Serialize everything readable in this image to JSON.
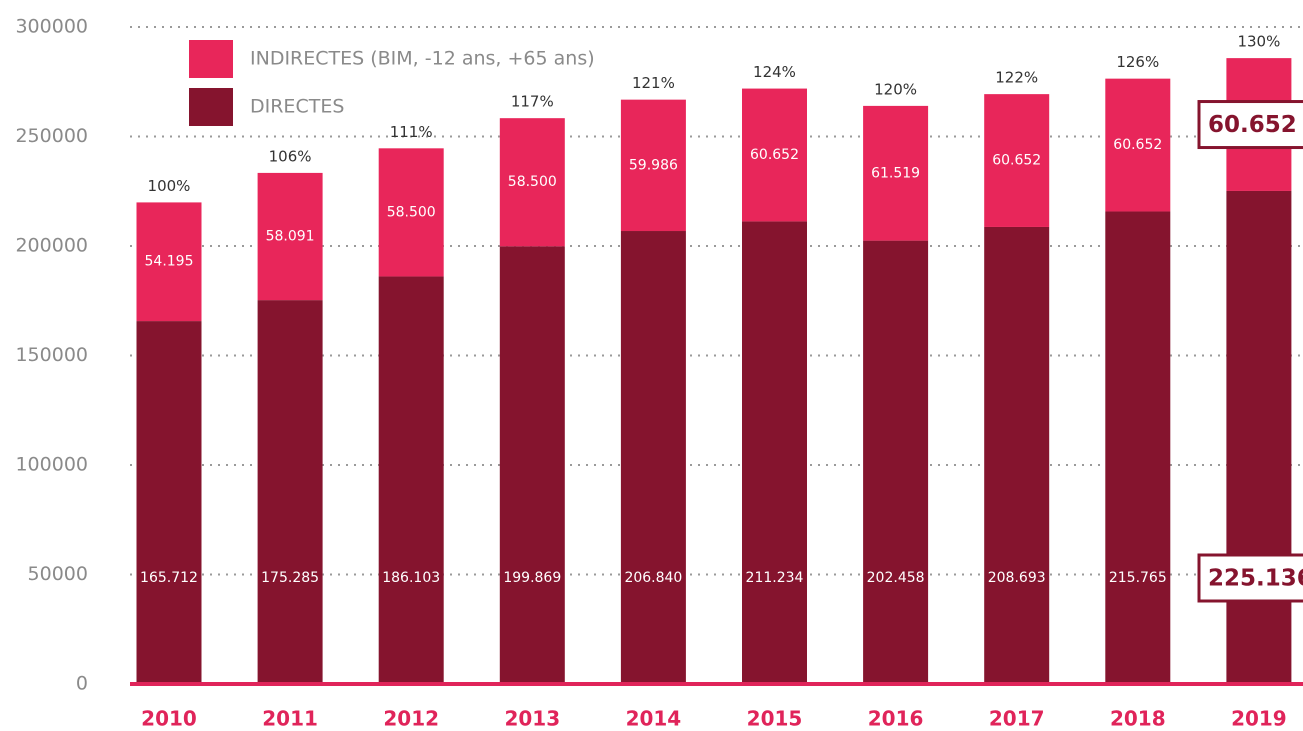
{
  "chart_data": {
    "type": "stacked_bar",
    "categories": [
      "2010",
      "2011",
      "2012",
      "2013",
      "2014",
      "2015",
      "2016",
      "2017",
      "2018",
      "2019"
    ],
    "series": [
      {
        "name": "DIRECTES",
        "color": "#85142e",
        "values": [
          165712,
          175285,
          186103,
          199869,
          206840,
          211234,
          202458,
          208693,
          215765,
          225136
        ],
        "value_labels": [
          "165.712",
          "175.285",
          "186.103",
          "199.869",
          "206.840",
          "211.234",
          "202.458",
          "208.693",
          "215.765",
          "225.136"
        ]
      },
      {
        "name": "INDIRECTES (BIM, -12 ans, +65 ans)",
        "color": "#e8265a",
        "values": [
          54195,
          58091,
          58500,
          58500,
          59986,
          60652,
          61519,
          60652,
          60652,
          60652
        ],
        "value_labels": [
          "54.195",
          "58.091",
          "58.500",
          "58.500",
          "59.986",
          "60.652",
          "61.519",
          "60.652",
          "60.652",
          "60.652"
        ]
      }
    ],
    "annotations": [
      "100%",
      "106%",
      "111%",
      "117%",
      "121%",
      "124%",
      "120%",
      "122%",
      "126%",
      "130%"
    ],
    "ylim": [
      0,
      300000
    ],
    "yticks": [
      0,
      50000,
      100000,
      150000,
      200000,
      250000,
      300000
    ],
    "grid": true,
    "axis_color": "#e0245a"
  }
}
